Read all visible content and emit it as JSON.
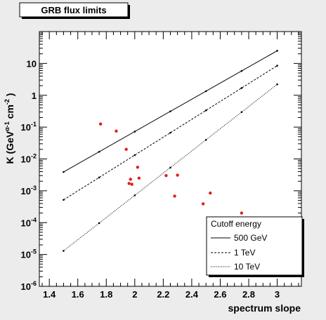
{
  "chart_data": {
    "type": "scatter",
    "title": "GRB flux limits",
    "xlabel": "spectrum slope",
    "ylabel": "K (GeVα-1 cm-2 )",
    "ylabel_parts": {
      "base": "K (GeV",
      "sup1": "α-1",
      "mid": " cm",
      "sup2": "-2",
      "end": " )"
    },
    "xlim": [
      1.33,
      3.17
    ],
    "ylim_log10": [
      -6,
      2
    ],
    "log_y": true,
    "grid": false,
    "legend_position": "bottom-right",
    "x_ticks": [
      "1.4",
      "1.6",
      "1.8",
      "2",
      "2.2",
      "2.4",
      "2.6",
      "2.8",
      "3"
    ],
    "x_tick_values": [
      1.4,
      1.6,
      1.8,
      2.0,
      2.2,
      2.4,
      2.6,
      2.8,
      3.0
    ],
    "y_ticks": [
      {
        "exp": -6,
        "base": "10",
        "sup": "-6"
      },
      {
        "exp": -5,
        "base": "10",
        "sup": "-5"
      },
      {
        "exp": -4,
        "base": "10",
        "sup": "-4"
      },
      {
        "exp": -3,
        "base": "10",
        "sup": "-3"
      },
      {
        "exp": -2,
        "base": "10",
        "sup": "-2"
      },
      {
        "exp": -1,
        "base": "10",
        "sup": "-1"
      },
      {
        "exp": 0,
        "base": "1",
        "sup": ""
      },
      {
        "exp": 1,
        "base": "10",
        "sup": ""
      }
    ],
    "legend_title": "Cutoff energy",
    "series": [
      {
        "name": "500 GeV",
        "kind": "line",
        "dash": "",
        "line_start": [
          1.5,
          0.0039
        ],
        "line_end": [
          3.0,
          25
        ],
        "marker_x": [
          1.5,
          1.75,
          2.0,
          2.25,
          2.5,
          2.75,
          3.0
        ]
      },
      {
        "name": "1 TeV",
        "kind": "line",
        "dash": "3,2",
        "line_start": [
          1.5,
          0.00052
        ],
        "line_end": [
          3.0,
          8.5
        ],
        "marker_x": [
          1.5,
          1.75,
          2.0,
          2.25,
          2.5,
          2.75,
          3.0
        ]
      },
      {
        "name": "10 TeV",
        "kind": "line",
        "dash": "1,1.5",
        "line_start": [
          1.5,
          1.3e-05
        ],
        "line_end": [
          3.0,
          2.2
        ],
        "marker_x": [
          1.5,
          1.75,
          2.0,
          2.25,
          2.5,
          2.75,
          3.0
        ]
      },
      {
        "kind": "points",
        "color": "#e0201b",
        "points": [
          [
            1.76,
            0.125
          ],
          [
            1.87,
            0.075
          ],
          [
            1.94,
            0.02
          ],
          [
            2.02,
            0.0055
          ],
          [
            1.97,
            0.0023
          ],
          [
            1.96,
            0.0017
          ],
          [
            1.98,
            0.0016
          ],
          [
            2.03,
            0.0025
          ],
          [
            2.22,
            0.003
          ],
          [
            2.3,
            0.0031
          ],
          [
            2.28,
            0.00068
          ],
          [
            2.53,
            0.00085
          ],
          [
            2.48,
            0.00039
          ],
          [
            2.75,
            0.0002
          ]
        ]
      }
    ]
  }
}
